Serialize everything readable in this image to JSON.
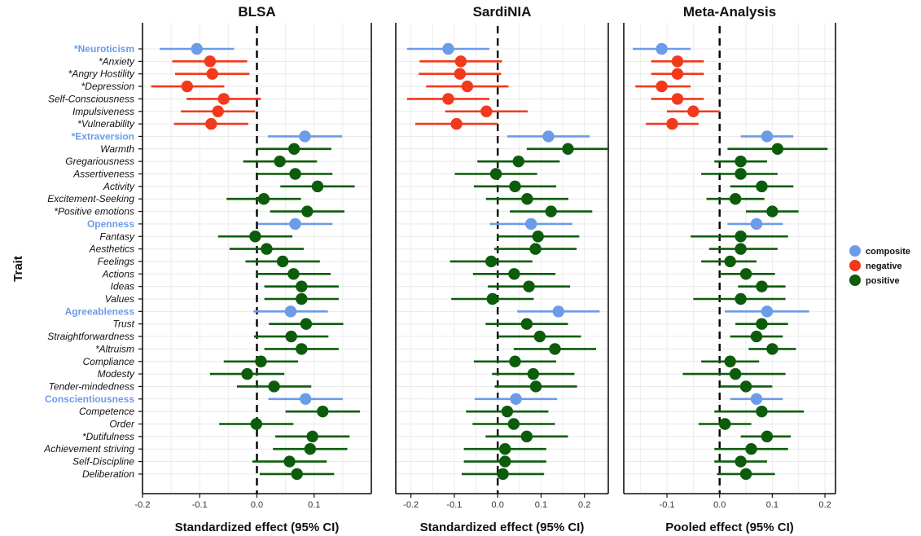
{
  "colors": {
    "composite": "#6c9be8",
    "negative": "#f2391c",
    "positive": "#0c5c0c"
  },
  "chart_data": {
    "type": "scatter",
    "ylabel": "Trait",
    "traits": [
      {
        "name": "*Neuroticism",
        "group": "composite"
      },
      {
        "name": "*Anxiety",
        "group": "negative"
      },
      {
        "name": "*Angry Hostility",
        "group": "negative"
      },
      {
        "name": "*Depression",
        "group": "negative"
      },
      {
        "name": "Self-Consciousness",
        "group": "negative"
      },
      {
        "name": "Impulsiveness",
        "group": "negative"
      },
      {
        "name": "*Vulnerability",
        "group": "negative"
      },
      {
        "name": "*Extraversion",
        "group": "composite"
      },
      {
        "name": "Warmth",
        "group": "positive"
      },
      {
        "name": "Gregariousness",
        "group": "positive"
      },
      {
        "name": "Assertiveness",
        "group": "positive"
      },
      {
        "name": "Activity",
        "group": "positive"
      },
      {
        "name": "Excitement-Seeking",
        "group": "positive"
      },
      {
        "name": "*Positive emotions",
        "group": "positive"
      },
      {
        "name": "Openness",
        "group": "composite"
      },
      {
        "name": "Fantasy",
        "group": "positive"
      },
      {
        "name": "Aesthetics",
        "group": "positive"
      },
      {
        "name": "Feelings",
        "group": "positive"
      },
      {
        "name": "Actions",
        "group": "positive"
      },
      {
        "name": "Ideas",
        "group": "positive"
      },
      {
        "name": "Values",
        "group": "positive"
      },
      {
        "name": "Agreeableness",
        "group": "composite"
      },
      {
        "name": "Trust",
        "group": "positive"
      },
      {
        "name": "Straightforwardness",
        "group": "positive"
      },
      {
        "name": "*Altruism",
        "group": "positive"
      },
      {
        "name": "Compliance",
        "group": "positive"
      },
      {
        "name": "Modesty",
        "group": "positive"
      },
      {
        "name": "Tender-mindedness",
        "group": "positive"
      },
      {
        "name": "Conscientiousness",
        "group": "composite"
      },
      {
        "name": "Competence",
        "group": "positive"
      },
      {
        "name": "Order",
        "group": "positive"
      },
      {
        "name": "*Dutifulness",
        "group": "positive"
      },
      {
        "name": "Achievement striving",
        "group": "positive"
      },
      {
        "name": "Self-Discipline",
        "group": "positive"
      },
      {
        "name": "Deliberation",
        "group": "positive"
      }
    ],
    "legend": {
      "position": "right",
      "entries": [
        {
          "label": "composite",
          "group": "composite"
        },
        {
          "label": "negative",
          "group": "negative"
        },
        {
          "label": "positive",
          "group": "positive"
        }
      ]
    },
    "panels": [
      {
        "title": "BLSA",
        "xlabel": "Standardized effect (95% CI)",
        "xlim": [
          -0.2,
          0.2
        ],
        "xticks": [
          -0.2,
          -0.1,
          0.0,
          0.1
        ],
        "tick_labels": [
          "-0.2",
          "-0.1",
          "0.0",
          "0.1"
        ],
        "estimates": [
          -0.105,
          -0.082,
          -0.078,
          -0.122,
          -0.058,
          -0.068,
          -0.08,
          0.084,
          0.065,
          0.04,
          0.067,
          0.106,
          0.012,
          0.088,
          0.067,
          -0.003,
          0.017,
          0.045,
          0.064,
          0.078,
          0.078,
          0.059,
          0.086,
          0.06,
          0.078,
          0.007,
          -0.017,
          0.03,
          0.085,
          0.115,
          -0.001,
          0.097,
          0.093,
          0.057,
          0.07
        ],
        "lower": [
          -0.17,
          -0.148,
          -0.143,
          -0.185,
          -0.123,
          -0.133,
          -0.145,
          0.019,
          0.0,
          -0.024,
          0.002,
          0.041,
          -0.053,
          0.023,
          0.002,
          -0.068,
          -0.048,
          -0.02,
          -0.001,
          0.013,
          0.013,
          -0.006,
          0.021,
          -0.005,
          0.013,
          -0.058,
          -0.082,
          -0.035,
          0.02,
          0.05,
          -0.066,
          0.032,
          0.028,
          -0.008,
          0.005
        ],
        "upper": [
          -0.04,
          -0.017,
          -0.013,
          -0.057,
          0.007,
          -0.003,
          -0.015,
          0.149,
          0.13,
          0.105,
          0.132,
          0.171,
          0.077,
          0.153,
          0.132,
          0.062,
          0.082,
          0.11,
          0.129,
          0.143,
          0.143,
          0.124,
          0.151,
          0.125,
          0.143,
          0.072,
          0.048,
          0.095,
          0.15,
          0.18,
          0.064,
          0.162,
          0.158,
          0.122,
          0.135
        ]
      },
      {
        "title": "SardiNIA",
        "xlabel": "Standardized effect (95% CI)",
        "xlim": [
          -0.235,
          0.255
        ],
        "xticks": [
          -0.2,
          -0.1,
          0.0,
          0.1,
          0.2
        ],
        "tick_labels": [
          "-0.2",
          "-0.1",
          "0.0",
          "0.1",
          "0.2"
        ],
        "estimates": [
          -0.114,
          -0.085,
          -0.087,
          -0.07,
          -0.114,
          -0.026,
          -0.095,
          0.117,
          0.162,
          0.048,
          -0.004,
          0.04,
          0.068,
          0.123,
          0.077,
          0.093,
          0.087,
          -0.015,
          0.038,
          0.072,
          -0.012,
          0.14,
          0.067,
          0.097,
          0.132,
          0.04,
          0.082,
          0.088,
          0.042,
          0.022,
          0.037,
          0.067,
          0.017,
          0.017,
          0.012
        ],
        "lower": [
          -0.209,
          -0.18,
          -0.182,
          -0.165,
          -0.209,
          -0.121,
          -0.19,
          0.022,
          0.067,
          -0.047,
          -0.099,
          -0.055,
          -0.027,
          0.028,
          -0.018,
          -0.002,
          -0.008,
          -0.11,
          -0.057,
          -0.023,
          -0.107,
          0.045,
          -0.028,
          0.002,
          0.037,
          -0.055,
          -0.013,
          -0.007,
          -0.053,
          -0.073,
          -0.058,
          -0.028,
          -0.078,
          -0.078,
          -0.083
        ],
        "upper": [
          -0.019,
          0.01,
          0.008,
          0.025,
          -0.019,
          0.069,
          0.0,
          0.212,
          0.257,
          0.143,
          0.091,
          0.135,
          0.163,
          0.218,
          0.172,
          0.188,
          0.182,
          0.08,
          0.133,
          0.167,
          0.083,
          0.235,
          0.162,
          0.192,
          0.227,
          0.135,
          0.177,
          0.183,
          0.137,
          0.117,
          0.132,
          0.162,
          0.112,
          0.112,
          0.107
        ]
      },
      {
        "title": "Meta-Analysis",
        "xlabel": "Pooled effect (95% CI)",
        "xlim": [
          -0.182,
          0.22
        ],
        "xticks": [
          -0.1,
          0.0,
          0.1,
          0.2
        ],
        "tick_labels": [
          "-0.1",
          "0.0",
          "0.1",
          "0.2"
        ],
        "estimates": [
          -0.11,
          -0.08,
          -0.08,
          -0.11,
          -0.08,
          -0.05,
          -0.09,
          0.09,
          0.11,
          0.04,
          0.04,
          0.08,
          0.03,
          0.1,
          0.07,
          0.04,
          0.04,
          0.02,
          0.05,
          0.08,
          0.04,
          0.09,
          0.08,
          0.07,
          0.1,
          0.02,
          0.03,
          0.05,
          0.07,
          0.08,
          0.01,
          0.09,
          0.06,
          0.04,
          0.05
        ],
        "lower": [
          -0.165,
          -0.13,
          -0.13,
          -0.16,
          -0.13,
          -0.1,
          -0.14,
          0.04,
          0.015,
          -0.01,
          -0.035,
          0.02,
          -0.025,
          0.05,
          0.015,
          -0.055,
          -0.02,
          -0.035,
          0.0,
          0.035,
          -0.05,
          0.01,
          0.03,
          0.02,
          0.055,
          -0.035,
          -0.07,
          0.0,
          0.02,
          -0.01,
          -0.04,
          0.04,
          -0.01,
          -0.01,
          -0.005
        ],
        "upper": [
          -0.055,
          -0.03,
          -0.03,
          -0.055,
          -0.03,
          0.0,
          -0.04,
          0.14,
          0.205,
          0.09,
          0.11,
          0.14,
          0.085,
          0.15,
          0.12,
          0.13,
          0.11,
          0.07,
          0.105,
          0.125,
          0.125,
          0.17,
          0.13,
          0.12,
          0.145,
          0.075,
          0.125,
          0.1,
          0.12,
          0.16,
          0.06,
          0.135,
          0.13,
          0.09,
          0.105
        ]
      }
    ]
  }
}
